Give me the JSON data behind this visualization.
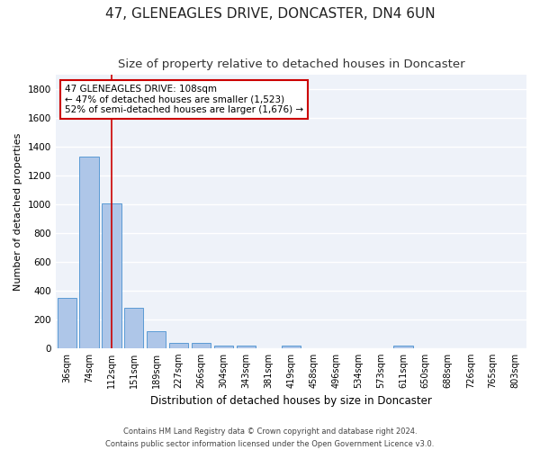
{
  "title": "47, GLENEAGLES DRIVE, DONCASTER, DN4 6UN",
  "subtitle": "Size of property relative to detached houses in Doncaster",
  "xlabel": "Distribution of detached houses by size in Doncaster",
  "ylabel": "Number of detached properties",
  "footnote1": "Contains HM Land Registry data © Crown copyright and database right 2024.",
  "footnote2": "Contains public sector information licensed under the Open Government Licence v3.0.",
  "categories": [
    "36sqm",
    "74sqm",
    "112sqm",
    "151sqm",
    "189sqm",
    "227sqm",
    "266sqm",
    "304sqm",
    "343sqm",
    "381sqm",
    "419sqm",
    "458sqm",
    "496sqm",
    "534sqm",
    "573sqm",
    "611sqm",
    "650sqm",
    "688sqm",
    "726sqm",
    "765sqm",
    "803sqm"
  ],
  "values": [
    350,
    1330,
    1005,
    283,
    120,
    35,
    35,
    20,
    15,
    0,
    15,
    0,
    0,
    0,
    0,
    20,
    0,
    0,
    0,
    0,
    0
  ],
  "bar_color": "#aec6e8",
  "bar_edge_color": "#5b9bd5",
  "background_color": "#eef2f9",
  "grid_color": "#ffffff",
  "annotation_box_color": "#cc0000",
  "annotation_line_color": "#cc0000",
  "property_bin_index": 2,
  "annotation_title": "47 GLENEAGLES DRIVE: 108sqm",
  "annotation_line1": "← 47% of detached houses are smaller (1,523)",
  "annotation_line2": "52% of semi-detached houses are larger (1,676) →",
  "ylim": [
    0,
    1900
  ],
  "yticks": [
    0,
    200,
    400,
    600,
    800,
    1000,
    1200,
    1400,
    1600,
    1800
  ],
  "red_line_x": 2,
  "title_fontsize": 11,
  "subtitle_fontsize": 9.5,
  "ylabel_fontsize": 8,
  "xlabel_fontsize": 8.5,
  "annotation_fontsize": 7.5,
  "tick_fontsize": 7,
  "ytick_fontsize": 7.5,
  "footnote_fontsize": 6
}
